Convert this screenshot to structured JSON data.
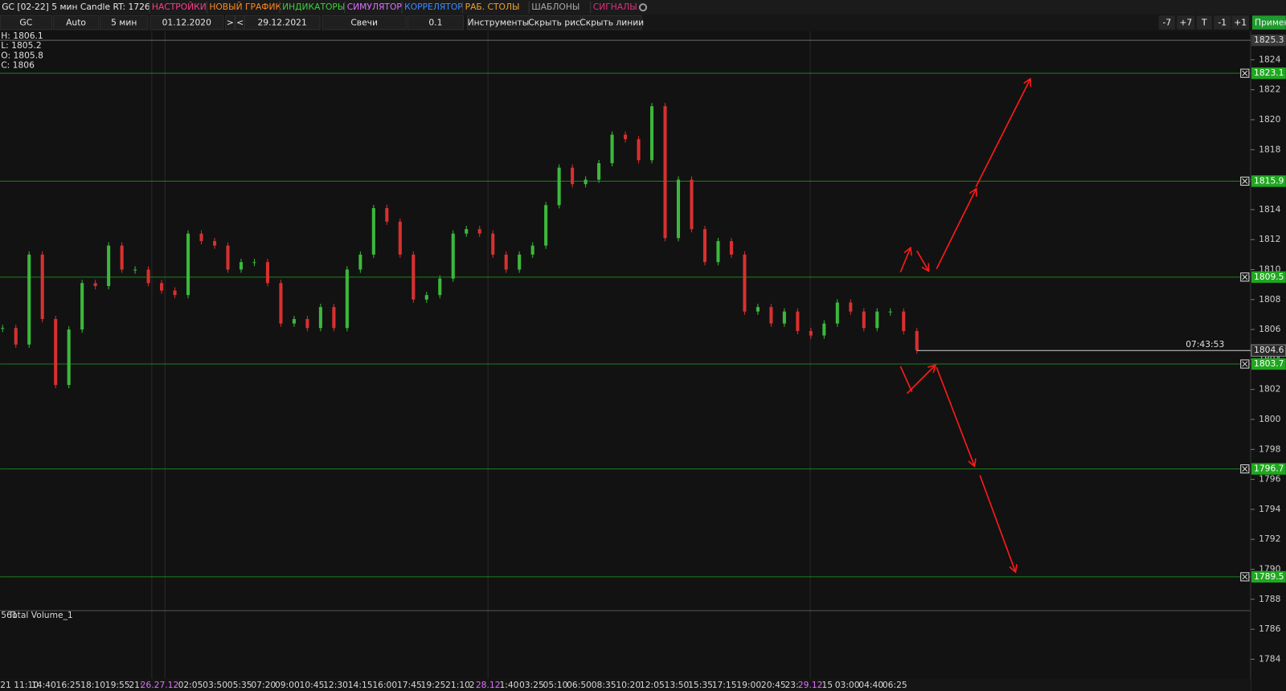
{
  "toolbar": {
    "title": "GC [02-22] 5 мин Candle RT: 1726",
    "menu": [
      "НАСТРОЙКИ",
      "НОВЫЙ ГРАФИК",
      "ИНДИКАТОРЫ",
      "СИМУЛЯТОР",
      "КОРРЕЛЯТОР",
      "РАБ. СТОЛЫ",
      "ШАБЛОНЫ",
      "СИГНАЛЫ"
    ],
    "menu_colors": [
      "#ff3d8b",
      "#ff8a1e",
      "#3ccf3c",
      "#e070ff",
      "#3d8bff",
      "#f0a030",
      "#a8a8a8",
      "#e0307a"
    ],
    "controls": [
      "GC",
      "Auto",
      "5 мин",
      "01.12.2020",
      ">",
      "<",
      "29.12.2021",
      "Свечи",
      "0.1",
      "Инструменты",
      "Скрыть рис.",
      "Скрыть линии"
    ],
    "right_buttons": [
      "-7",
      "+7",
      "T",
      "-1",
      "+1",
      "Примен"
    ]
  },
  "chart_data": {
    "type": "candlestick",
    "ohlc_header": [
      "H: 1806.1",
      "L: 1805.2",
      "O: 1805.8",
      "C: 1806"
    ],
    "close": [
      1806.1,
      1805,
      1811,
      1806.7,
      1802.3,
      1806,
      1809.1,
      1808.9,
      1811.6,
      1810,
      1810,
      1809.1,
      1808.6,
      1808.3,
      1812.4,
      1811.9,
      1811.6,
      1810,
      1810.5,
      1810.5,
      1809.1,
      1806.4,
      1806.7,
      1806.1,
      1807.5,
      1806.1,
      1810,
      1811,
      1814.1,
      1813.2,
      1811,
      1808,
      1808.3,
      1809.4,
      1812.4,
      1812.7,
      1812.4,
      1811,
      1810,
      1811,
      1811.6,
      1814.3,
      1816.8,
      1815.7,
      1816,
      1817.1,
      1819,
      1818.7,
      1817.3,
      1820.9,
      1812.1,
      1816,
      1812.7,
      1810.5,
      1811.9,
      1811,
      1807.2,
      1807.5,
      1806.4,
      1807.2,
      1805.9,
      1805.6,
      1806.4,
      1807.8,
      1807.2,
      1806.1,
      1807.2,
      1807.2,
      1805.9,
      1804.6
    ],
    "up_color": "#3cb83c",
    "down_color": "#d83030",
    "ylim": [
      1782.7,
      1825.8
    ],
    "yticks": [
      1784,
      1786,
      1788,
      1790,
      1792,
      1794,
      1796,
      1798,
      1800,
      1802,
      1804,
      1806,
      1808,
      1810,
      1812,
      1814,
      1816,
      1818,
      1820,
      1822,
      1824
    ],
    "top_label": 1825.3,
    "levels": [
      1823.1,
      1815.9,
      1809.5,
      1803.7,
      1796.7,
      1789.5
    ],
    "level_color": "#1fa81f",
    "last_price": 1804.6,
    "timer": "07:43:53",
    "volume_label": "Total Volume_1",
    "volume_value": 561,
    "xtick_labels": [
      "21 11:10",
      "14:40",
      "16:25",
      "18:10",
      "19:55",
      "21:",
      "26.27.12",
      "02:05",
      "03:50",
      "05:35",
      "07:20",
      "09:00",
      "10:45",
      "12:30",
      "14:15",
      "16:00",
      "17:45",
      "19:25",
      "21:10",
      "2",
      "28.12",
      "1:40",
      "03:25",
      "05:10",
      "06:50",
      "08:35",
      "10:20",
      "12:05",
      "13:50",
      "15:35",
      "17:15",
      "19:00",
      "20:45",
      "23:",
      "29.12",
      "15",
      "03:00",
      "04:40",
      "06:25"
    ]
  }
}
